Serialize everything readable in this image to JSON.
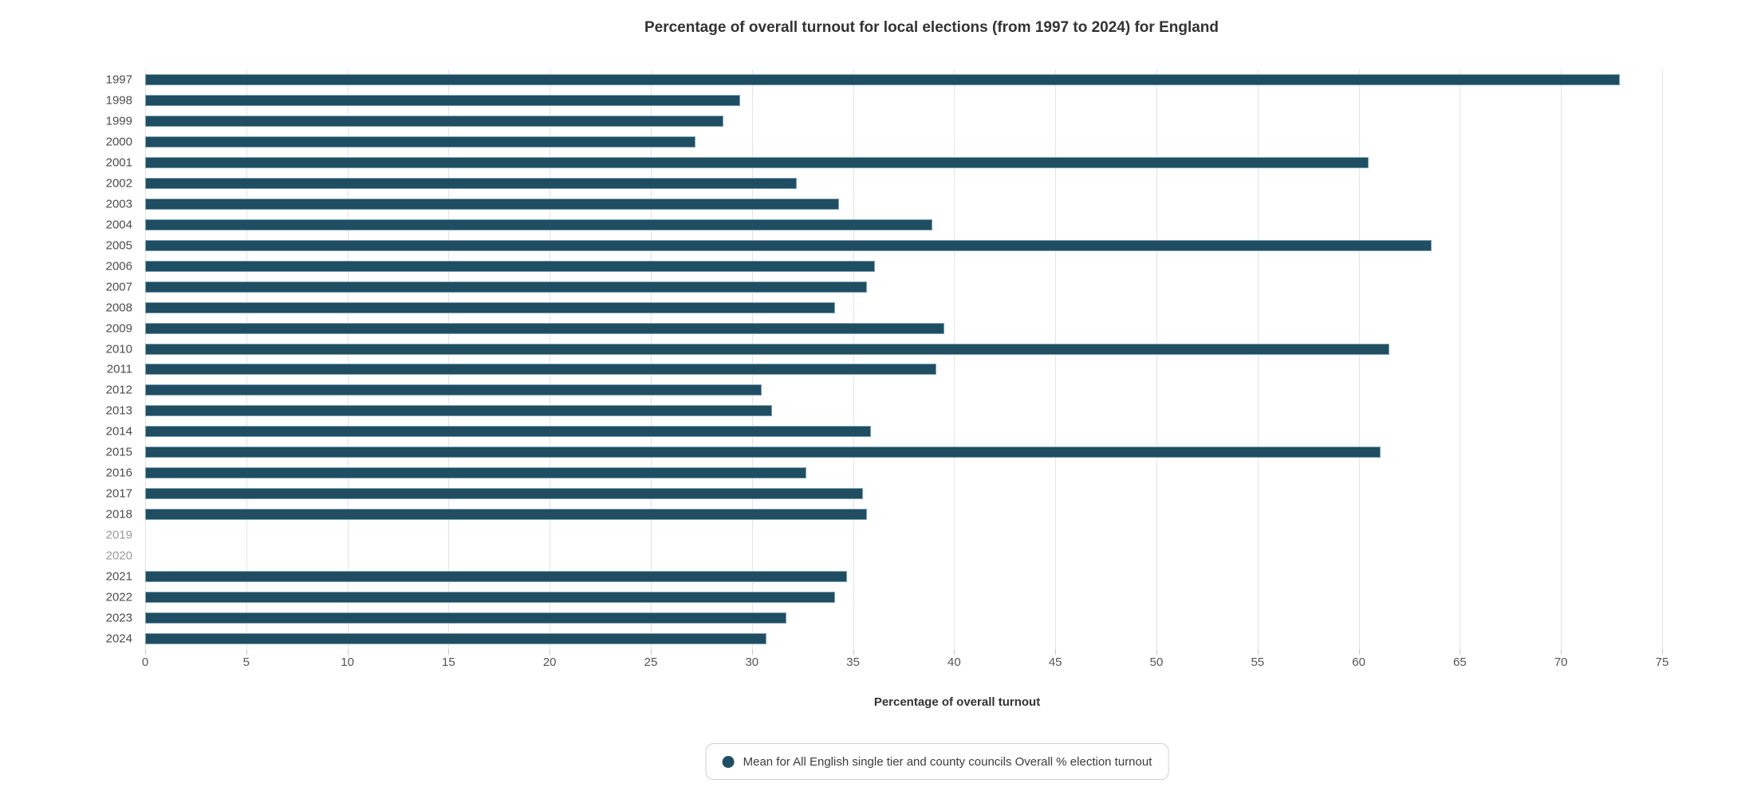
{
  "title": "Percentage of overall turnout for local elections (from 1997 to 2024) for England",
  "x_axis": {
    "title": "Percentage of overall turnout",
    "ticks": [
      0,
      5,
      10,
      15,
      20,
      25,
      30,
      35,
      40,
      45,
      50,
      55,
      60,
      65,
      70,
      75
    ]
  },
  "legend": {
    "position": "bottom-center",
    "items": [
      {
        "label": "Mean for All English single tier and county councils Overall % election turnout",
        "marker": "circle-icon",
        "marker_color": "#1f4e63"
      }
    ]
  },
  "colors": {
    "background": "#ffffff",
    "bar_fill": "#1f4e63",
    "bar_border": "#7da0b5",
    "gridline": "#e4e4e4",
    "tick_mark": "#c9c9c9",
    "title_text": "#333333",
    "axis_tick_text": "#555555",
    "year_text": "#4d4d4d",
    "year_text_missing": "#9a9a9a",
    "legend_border": "#cfcfcf",
    "legend_text": "#3d3d3d"
  },
  "chart_data": {
    "type": "bar",
    "orientation": "horizontal",
    "title": "Percentage of overall turnout for local elections (from 1997 to 2024) for England",
    "xlabel": "Percentage of overall turnout",
    "ylabel": "",
    "xlim": [
      0,
      75
    ],
    "x_ticks": [
      0,
      5,
      10,
      15,
      20,
      25,
      30,
      35,
      40,
      45,
      50,
      55,
      60,
      65,
      70,
      75
    ],
    "grid": "vertical-only",
    "legend_position": "bottom",
    "series_name": "Mean for All English single tier and county councils Overall % election turnout",
    "categories": [
      "1997",
      "1998",
      "1999",
      "2000",
      "2001",
      "2002",
      "2003",
      "2004",
      "2005",
      "2006",
      "2007",
      "2008",
      "2009",
      "2010",
      "2011",
      "2012",
      "2013",
      "2014",
      "2015",
      "2016",
      "2017",
      "2018",
      "2019",
      "2020",
      "2021",
      "2022",
      "2023",
      "2024"
    ],
    "values": [
      72.9,
      29.4,
      28.6,
      27.2,
      60.5,
      32.2,
      34.3,
      38.9,
      63.6,
      36.1,
      35.7,
      34.1,
      39.5,
      61.5,
      39.1,
      30.5,
      31.0,
      35.9,
      61.1,
      32.7,
      35.5,
      35.7,
      null,
      null,
      34.7,
      34.1,
      31.7,
      30.7
    ],
    "missing_categories": [
      "2019",
      "2020"
    ]
  }
}
